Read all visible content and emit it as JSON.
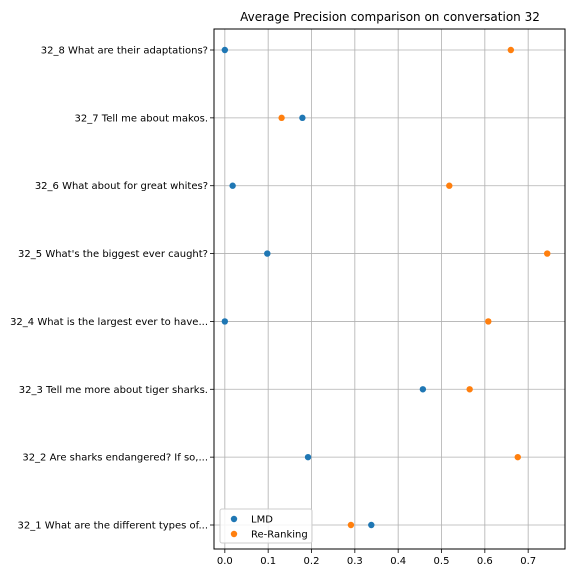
{
  "chart_data": {
    "type": "scatter",
    "title": "Average Precision comparison on conversation 32",
    "xlabel": "",
    "ylabel": "",
    "xlim": [
      -0.025,
      0.785
    ],
    "x_ticks": [
      0.0,
      0.1,
      0.2,
      0.3,
      0.4,
      0.5,
      0.6,
      0.7
    ],
    "x_tick_labels": [
      "0.0",
      "0.1",
      "0.2",
      "0.3",
      "0.4",
      "0.5",
      "0.6",
      "0.7"
    ],
    "grid": true,
    "legend_position": "lower-left",
    "categories": [
      "32_1 What are the different types of...",
      "32_2 Are sharks endangered? If so,...",
      "32_3 Tell me more about tiger sharks.",
      "32_4 What is the largest ever to have...",
      "32_5 What's the biggest ever caught?",
      "32_6 What about for great whites?",
      "32_7 Tell me about makos.",
      "32_8 What are their adaptations?"
    ],
    "series": [
      {
        "name": "LMD",
        "color": "#1f77b4",
        "values": [
          0.338,
          0.192,
          0.457,
          0.0,
          0.098,
          0.018,
          0.179,
          0.0
        ]
      },
      {
        "name": "Re-Ranking",
        "color": "#ff7f0e",
        "values": [
          0.291,
          0.676,
          0.565,
          0.608,
          0.744,
          0.518,
          0.131,
          0.66
        ]
      }
    ]
  }
}
